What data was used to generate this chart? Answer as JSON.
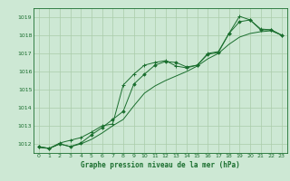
{
  "title": "Graphe pression niveau de la mer (hPa)",
  "bg_color": "#cde8d4",
  "grid_color": "#aaccaa",
  "line_color": "#1a6e2e",
  "marker_color": "#1a6e2e",
  "xlim": [
    -0.5,
    23.5
  ],
  "ylim": [
    1011.5,
    1019.5
  ],
  "yticks": [
    1012,
    1013,
    1014,
    1015,
    1016,
    1017,
    1018,
    1019
  ],
  "xticks": [
    0,
    1,
    2,
    3,
    4,
    5,
    6,
    7,
    8,
    9,
    10,
    11,
    12,
    13,
    14,
    15,
    16,
    17,
    18,
    19,
    20,
    21,
    22,
    23
  ],
  "series1": [
    1011.8,
    1011.75,
    1012.0,
    1011.85,
    1012.0,
    1012.25,
    1012.6,
    1013.0,
    1013.35,
    1014.1,
    1014.8,
    1015.2,
    1015.5,
    1015.75,
    1016.0,
    1016.3,
    1016.7,
    1017.0,
    1017.5,
    1017.9,
    1018.1,
    1018.2,
    1018.25,
    1018.0
  ],
  "series2": [
    1011.85,
    1011.75,
    1012.0,
    1011.85,
    1012.05,
    1012.5,
    1012.9,
    1013.35,
    1013.8,
    1015.3,
    1015.85,
    1016.35,
    1016.55,
    1016.5,
    1016.25,
    1016.35,
    1016.95,
    1017.05,
    1018.1,
    1018.75,
    1018.85,
    1018.3,
    1018.3,
    1018.0
  ],
  "series3": [
    1011.85,
    1011.75,
    1012.05,
    1012.2,
    1012.35,
    1012.65,
    1013.0,
    1013.1,
    1015.25,
    1015.85,
    1016.35,
    1016.5,
    1016.6,
    1016.3,
    1016.2,
    1016.35,
    1017.0,
    1017.1,
    1018.1,
    1019.05,
    1018.85,
    1018.35,
    1018.3,
    1018.0
  ]
}
